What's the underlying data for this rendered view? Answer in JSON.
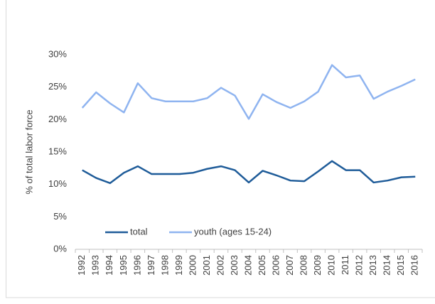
{
  "chart_data": {
    "type": "line",
    "y_label": "% of total labor force",
    "categories": [
      "1992",
      "1993",
      "1994",
      "1995",
      "1996",
      "1997",
      "1998",
      "1999",
      "2000",
      "2001",
      "2002",
      "2003",
      "2004",
      "2005",
      "2006",
      "2007",
      "2008",
      "2009",
      "2010",
      "2011",
      "2012",
      "2013",
      "2014",
      "2015",
      "2016"
    ],
    "series": [
      {
        "name": "total",
        "color": "#1f5c99",
        "values": [
          12.2,
          11.0,
          10.2,
          11.8,
          12.8,
          11.6,
          11.6,
          11.6,
          11.8,
          12.4,
          12.8,
          12.2,
          10.3,
          12.1,
          11.4,
          10.6,
          10.5,
          12.0,
          13.6,
          12.2,
          12.2,
          10.3,
          10.6,
          11.1,
          11.2
        ]
      },
      {
        "name": "youth (ages 15-24)",
        "color": "#8fb4f0",
        "values": [
          21.8,
          24.2,
          22.5,
          21.1,
          25.6,
          23.3,
          22.8,
          22.8,
          22.8,
          23.3,
          24.9,
          23.7,
          20.1,
          23.9,
          22.7,
          21.8,
          22.8,
          24.3,
          28.4,
          26.5,
          26.8,
          23.2,
          24.3,
          25.2,
          26.2
        ]
      }
    ],
    "ylim": [
      0,
      30
    ],
    "yticks": [
      {
        "value": 0,
        "label": "0%"
      },
      {
        "value": 5,
        "label": "5%"
      },
      {
        "value": 10,
        "label": "10%"
      },
      {
        "value": 15,
        "label": "15%"
      },
      {
        "value": 20,
        "label": "20%"
      },
      {
        "value": 25,
        "label": "25%"
      },
      {
        "value": 30,
        "label": "30%"
      }
    ],
    "grid": false,
    "legend": "lower left"
  }
}
